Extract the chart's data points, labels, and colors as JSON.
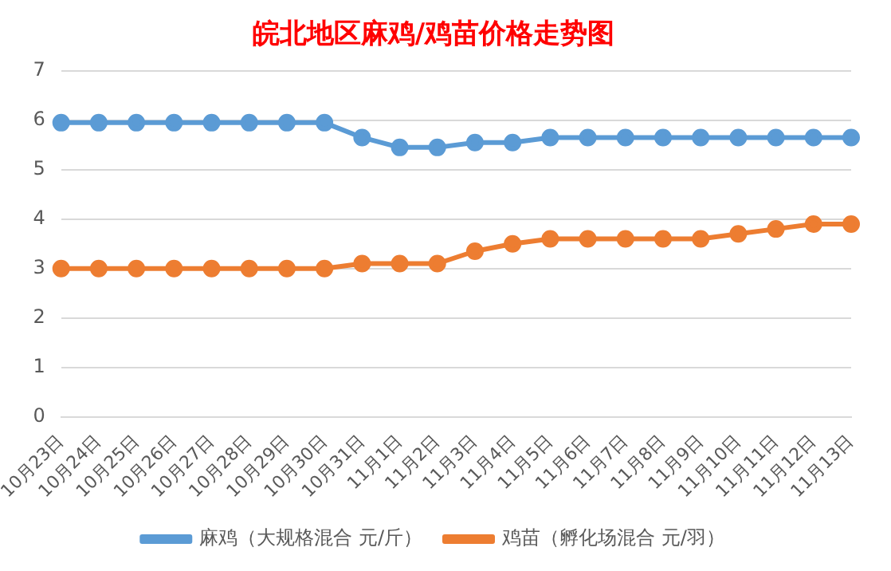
{
  "chart_data": {
    "type": "line",
    "title": "皖北地区麻鸡/鸡苗价格走势图",
    "categories": [
      "10月23日",
      "10月24日",
      "10月25日",
      "10月26日",
      "10月27日",
      "10月28日",
      "10月29日",
      "10月30日",
      "10月31日",
      "11月1日",
      "11月2日",
      "11月3日",
      "11月4日",
      "11月5日",
      "11月6日",
      "11月7日",
      "11月8日",
      "11月9日",
      "11月10日",
      "11月11日",
      "11月12日",
      "11月13日"
    ],
    "series": [
      {
        "name": "麻鸡（大规格混合 元/斤）",
        "color": "#5b9bd5",
        "values": [
          5.95,
          5.95,
          5.95,
          5.95,
          5.95,
          5.95,
          5.95,
          5.95,
          5.65,
          5.45,
          5.45,
          5.55,
          5.55,
          5.65,
          5.65,
          5.65,
          5.65,
          5.65,
          5.65,
          5.65,
          5.65,
          5.65
        ]
      },
      {
        "name": "鸡苗（孵化场混合 元/羽）",
        "color": "#ed7d31",
        "values": [
          3.0,
          3.0,
          3.0,
          3.0,
          3.0,
          3.0,
          3.0,
          3.0,
          3.1,
          3.1,
          3.1,
          3.35,
          3.5,
          3.6,
          3.6,
          3.6,
          3.6,
          3.6,
          3.7,
          3.8,
          3.9,
          3.9
        ]
      }
    ],
    "ylim": [
      0,
      7
    ],
    "yticks": [
      0,
      1,
      2,
      3,
      4,
      5,
      6,
      7
    ],
    "grid": "y",
    "legend": "bottom",
    "marker": "circle",
    "line_style": "solid"
  }
}
